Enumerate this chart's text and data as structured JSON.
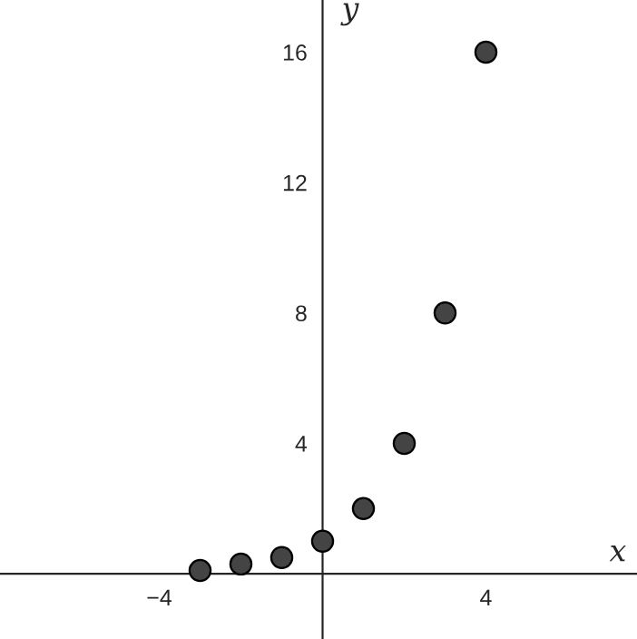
{
  "chart_data": {
    "type": "scatter",
    "xlabel": "x",
    "ylabel": "y",
    "x": [
      -3,
      -2,
      -1,
      0,
      1,
      2,
      3,
      4
    ],
    "series": [
      {
        "color": "#444444",
        "values": [
          0.1,
          0.3,
          0.5,
          1,
          2,
          4,
          8,
          16
        ]
      }
    ],
    "xlim": [
      -7.9,
      7.7
    ],
    "ylim": [
      -2.0,
      17.6
    ],
    "xticks": [
      {
        "value": -4,
        "label": "−4"
      },
      4
    ],
    "yticks": [
      4,
      8,
      12,
      16
    ],
    "marker": "circle",
    "grid": false
  }
}
